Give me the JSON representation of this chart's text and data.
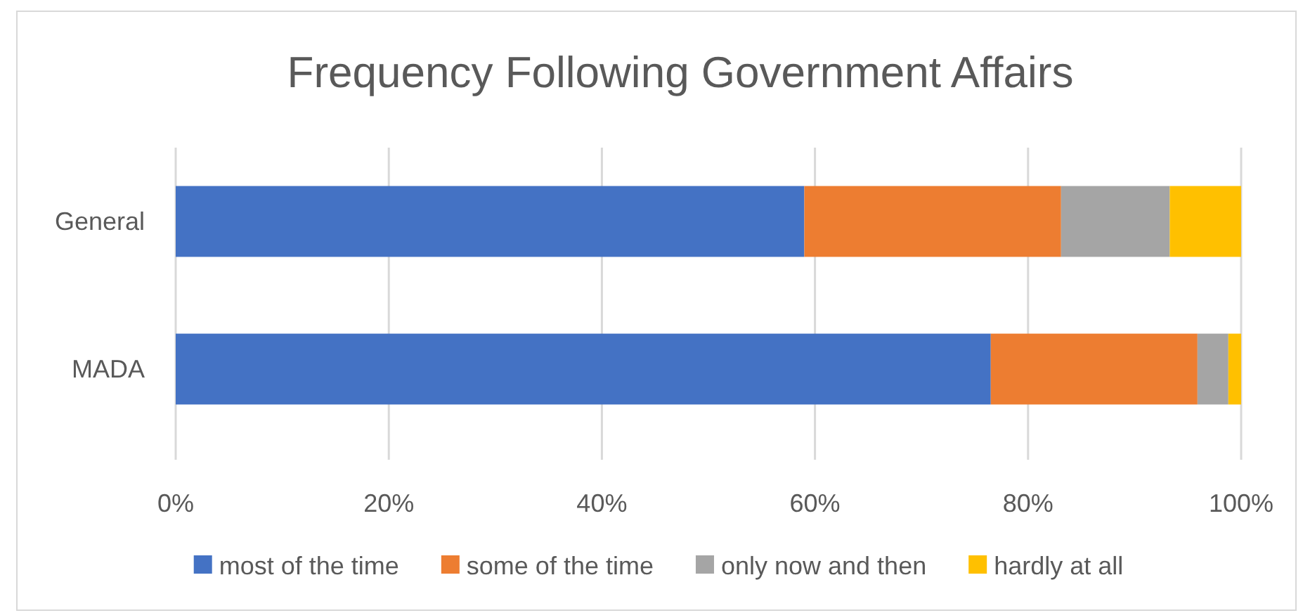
{
  "chart_data": {
    "type": "bar",
    "orientation": "horizontal",
    "stacked": true,
    "title": "Frequency Following Government Affairs",
    "categories": [
      "General",
      "MADA"
    ],
    "series": [
      {
        "name": "most of the time",
        "color": "#4472c4",
        "values": [
          59.0,
          76.5
        ]
      },
      {
        "name": "some of the time",
        "color": "#ed7d31",
        "values": [
          24.1,
          19.4
        ]
      },
      {
        "name": "only now and then",
        "color": "#a5a5a5",
        "values": [
          10.2,
          2.9
        ]
      },
      {
        "name": "hardly at all",
        "color": "#ffc000",
        "values": [
          6.7,
          1.2
        ]
      }
    ],
    "xlim": [
      0,
      100
    ],
    "xticks": [
      {
        "value": 0,
        "label": "0%"
      },
      {
        "value": 20,
        "label": "20%"
      },
      {
        "value": 40,
        "label": "40%"
      },
      {
        "value": 60,
        "label": "60%"
      },
      {
        "value": 80,
        "label": "80%"
      },
      {
        "value": 100,
        "label": "100%"
      }
    ],
    "grid": "x",
    "legend": "bottom"
  }
}
